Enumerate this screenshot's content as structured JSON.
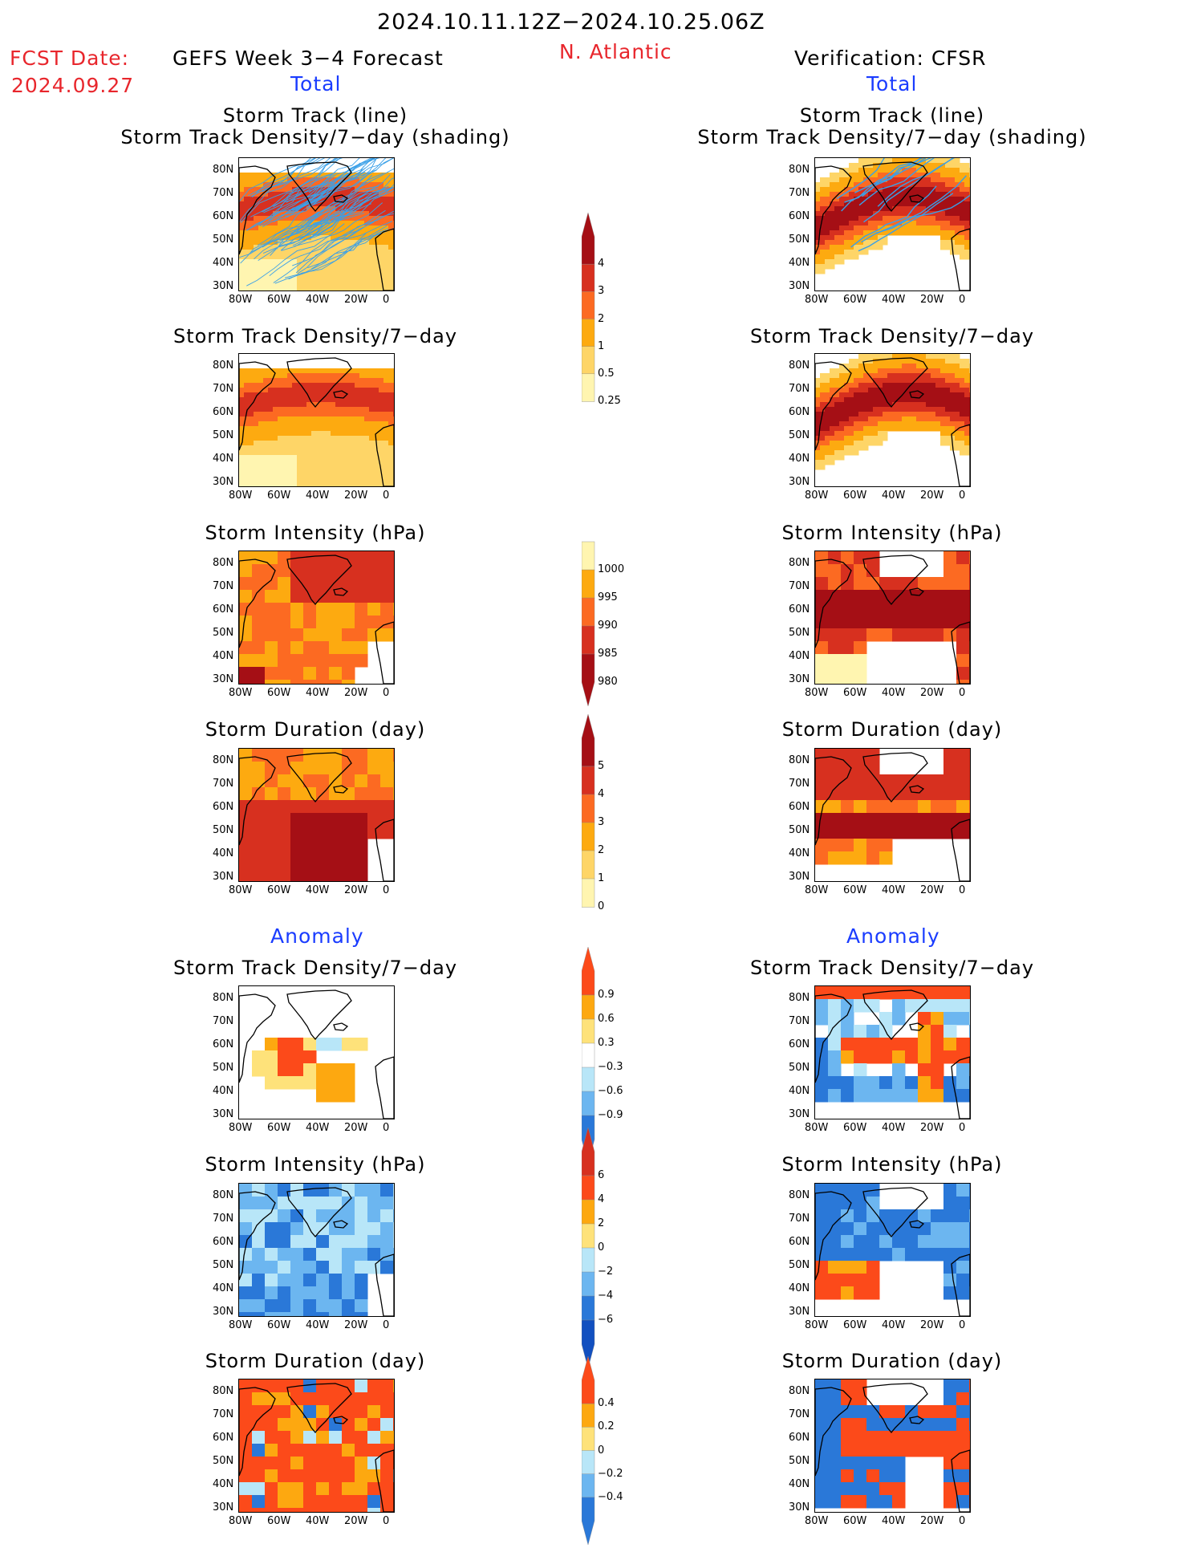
{
  "header": {
    "period": "2024.10.11.12Z−2024.10.25.06Z",
    "fcst_label": "FCST Date:",
    "fcst_date": "2024.09.27",
    "left_title": "GEFS Week 3−4 Forecast",
    "region": "N. Atlantic",
    "right_title": "Verification: CFSR",
    "total_label": "Total",
    "anomaly_label": "Anomaly"
  },
  "panel_titles": {
    "track_line": "Storm Track (line)",
    "track_shading": "Storm Track Density/7−day (shading)",
    "density": "Storm Track Density/7−day",
    "intensity": "Storm Intensity (hPa)",
    "duration": "Storm Duration (day)"
  },
  "axes": {
    "lat_ticks": [
      "80N",
      "70N",
      "60N",
      "50N",
      "40N",
      "30N"
    ],
    "lon_ticks": [
      "80W",
      "60W",
      "40W",
      "20W",
      "0"
    ]
  },
  "colorbars": {
    "density_total": {
      "labels": [
        "4",
        "3",
        "2",
        "1",
        "0.5",
        "0.25"
      ],
      "colors": [
        "#a50f15",
        "#d7301f",
        "#fc6a22",
        "#fdaa10",
        "#fed567",
        "#fff5b0"
      ]
    },
    "intensity_total": {
      "labels": [
        "1000",
        "995",
        "990",
        "985",
        "980"
      ],
      "colors": [
        "#fff5b0",
        "#fdaa10",
        "#fc6a22",
        "#d7301f",
        "#a50f15"
      ]
    },
    "duration_total": {
      "labels": [
        "5",
        "4",
        "3",
        "2",
        "1",
        "0"
      ],
      "colors": [
        "#a50f15",
        "#d7301f",
        "#fc6a22",
        "#fdaa10",
        "#fed567",
        "#fff5b0"
      ]
    },
    "density_anom": {
      "labels": [
        "0.9",
        "0.6",
        "0.3",
        "−0.3",
        "−0.6",
        "−0.9"
      ],
      "colors": [
        "#fc4a1a",
        "#fda810",
        "#fee27a",
        "#ffffff",
        "#b8e6f8",
        "#6cb6f0",
        "#2a78d8"
      ]
    },
    "intensity_anom": {
      "labels": [
        "6",
        "4",
        "2",
        "0",
        "−2",
        "−4",
        "−6"
      ],
      "colors": [
        "#d7301f",
        "#fc4a1a",
        "#fda810",
        "#fee27a",
        "#b8e6f8",
        "#6cb6f0",
        "#2a78d8",
        "#1250c0"
      ]
    },
    "duration_anom": {
      "labels": [
        "0.4",
        "0.2",
        "0",
        "−0.2",
        "−0.4"
      ],
      "colors": [
        "#fc4a1a",
        "#fda810",
        "#fee27a",
        "#b8e6f8",
        "#6cb6f0",
        "#2a78d8"
      ]
    }
  },
  "palette": {
    "land_line": "#000000",
    "track_line": "#3aa0e8"
  }
}
